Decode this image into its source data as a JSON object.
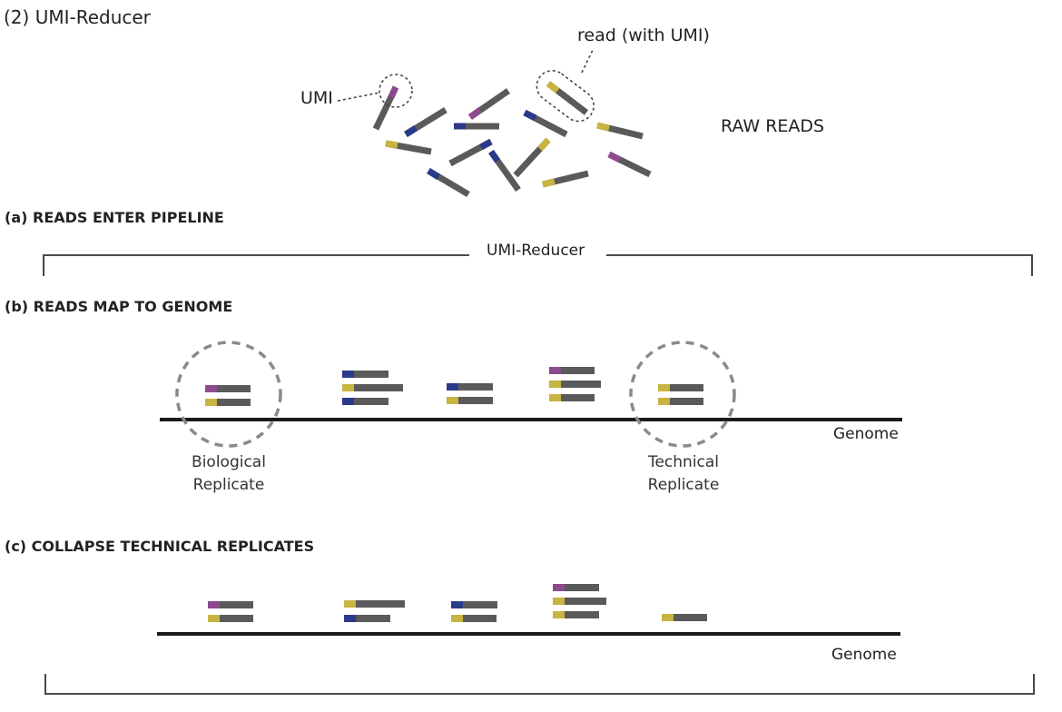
{
  "title": "(2) UMI-Reducer",
  "raw": {
    "umi_label": "UMI",
    "read_label": "read (with UMI)",
    "raw_reads_label": "RAW READS"
  },
  "sections": {
    "a": "(a) READS ENTER PIPELINE",
    "b": "(b) READS MAP TO GENOME",
    "c": "(c) COLLAPSE TECHNICAL REPLICATES"
  },
  "pipeline_label": "UMI-Reducer",
  "genome_label_b": "Genome",
  "genome_label_c": "Genome",
  "biological_replicate": [
    "Biological",
    "Replicate"
  ],
  "technical_replicate": [
    "Technical",
    "Replicate"
  ],
  "colors": {
    "read": "#5a5a5a",
    "umi_purple": "#8e4a8f",
    "umi_blue": "#2a3a8a",
    "umi_yellow": "#c8b440",
    "genome": "#1a1a1a",
    "bracket": "#333333",
    "dashed_circle": "#8a8a8a"
  }
}
